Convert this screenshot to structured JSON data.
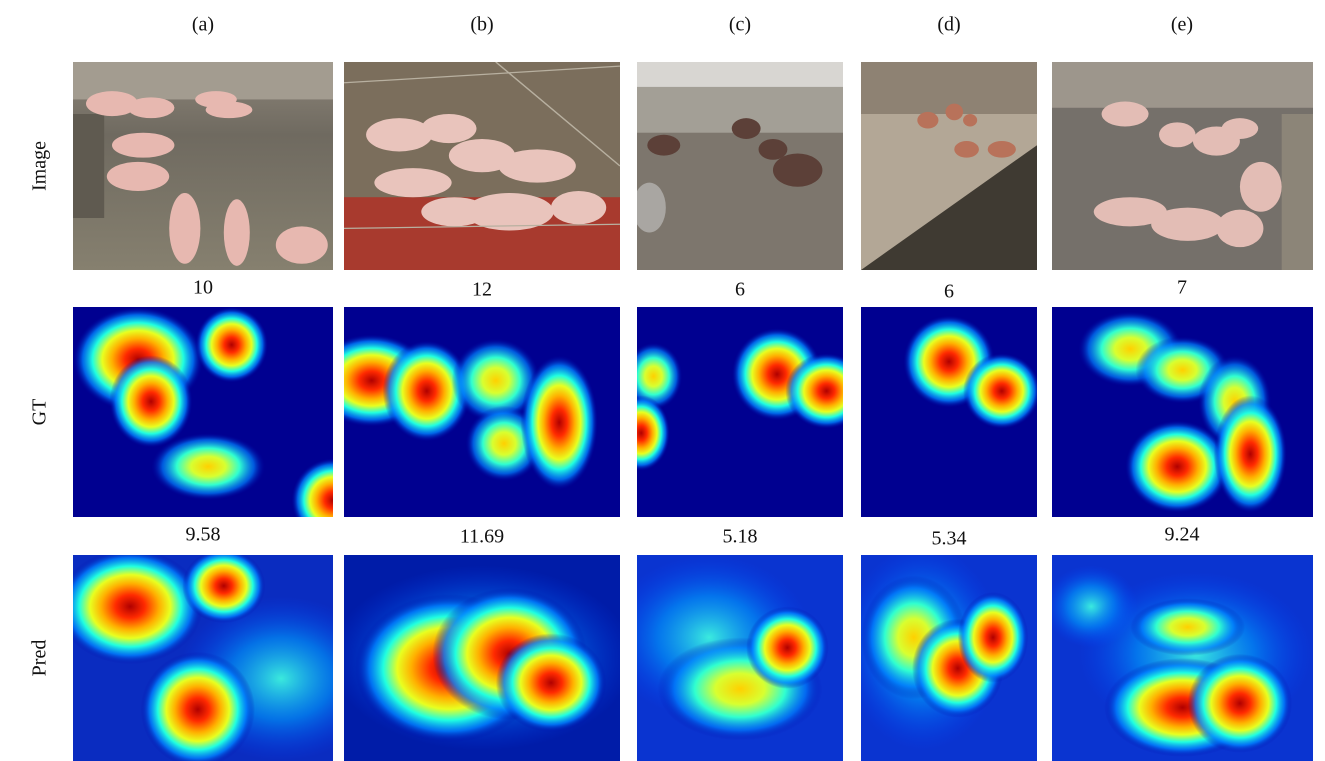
{
  "columns": [
    "(a)",
    "(b)",
    "(c)",
    "(d)",
    "(e)"
  ],
  "rows": [
    "Image",
    "GT",
    "Pred"
  ],
  "gt_counts": [
    "10",
    "12",
    "6",
    "6",
    "7"
  ],
  "pred_counts": [
    "9.58",
    "11.69",
    "5.18",
    "5.34",
    "9.24"
  ]
}
